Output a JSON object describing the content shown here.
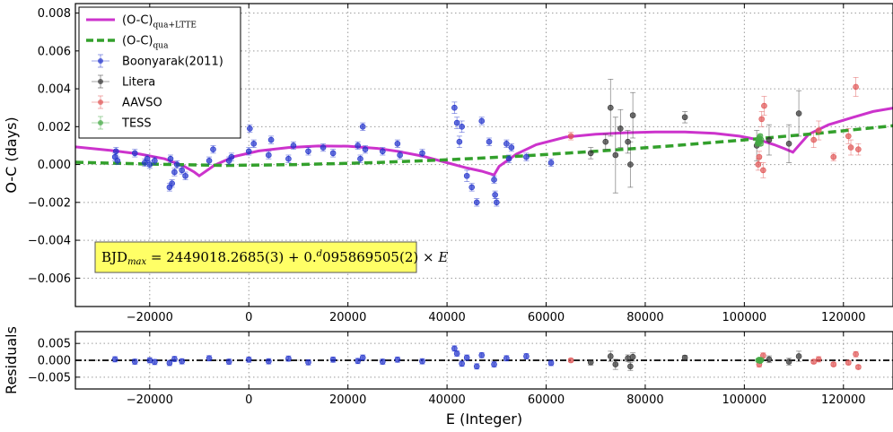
{
  "chart_data": [
    {
      "type": "scatter",
      "panel": "main",
      "xlabel": "",
      "ylabel": "O-C (days)",
      "xlim": [
        -35000,
        130000
      ],
      "ylim": [
        -0.0075,
        0.0085
      ],
      "xticks": [
        -20000,
        0,
        20000,
        40000,
        60000,
        80000,
        100000,
        120000
      ],
      "xtick_labels": [
        "−20000",
        "0",
        "20000",
        "40000",
        "60000",
        "80000",
        "100000",
        "120000"
      ],
      "yticks": [
        -0.006,
        -0.004,
        -0.002,
        0.0,
        0.002,
        0.004,
        0.006,
        0.008
      ],
      "ytick_labels": [
        "−0.006",
        "−0.004",
        "−0.002",
        "0.000",
        "0.002",
        "0.004",
        "0.006",
        "0.008"
      ],
      "grid": true,
      "legend_position": "top-left",
      "annotation": {
        "text": "BJD_max = 2449018.2685(3) + 0.d095869505(2) × E",
        "position": "lower-left",
        "background": "#ffff66"
      },
      "legend": [
        {
          "label_main": "(O-C)",
          "label_sub": "qua+LTTE",
          "style": "line",
          "color": "#cc33cc"
        },
        {
          "label_main": "(O-C)",
          "label_sub": "qua",
          "style": "dashed",
          "color": "#33a02c"
        },
        {
          "label_main": "Boonyarak(2011)",
          "label_sub": "",
          "style": "errorbar",
          "color": "#2233cc"
        },
        {
          "label_main": "Litera",
          "label_sub": "",
          "style": "errorbar",
          "color": "#333333"
        },
        {
          "label_main": "AAVSO",
          "label_sub": "",
          "style": "errorbar",
          "color": "#e05555"
        },
        {
          "label_main": "TESS",
          "label_sub": "",
          "style": "errorbar",
          "color": "#44aa44"
        }
      ],
      "lines": [
        {
          "name": "(O-C)qua+LTTE",
          "color": "#cc33cc",
          "style": "solid",
          "x": [
            -35000,
            -28000,
            -22000,
            -17000,
            -13000,
            -11000,
            -10000,
            -7000,
            -3000,
            2000,
            8000,
            14000,
            20000,
            26000,
            30000,
            35000,
            40000,
            44000,
            47000,
            49500,
            50500,
            54000,
            58000,
            64000,
            70000,
            76000,
            82000,
            88000,
            94000,
            99000,
            103000,
            106000,
            108000,
            109800,
            110300,
            113000,
            117000,
            122000,
            126000,
            130000
          ],
          "y": [
            0.00093,
            0.00075,
            0.00055,
            0.0003,
            -0.0001,
            -0.0004,
            -0.0006,
            -5e-05,
            0.00042,
            0.00072,
            0.0009,
            0.00098,
            0.00097,
            0.00085,
            0.0007,
            0.00045,
            0.0001,
            -0.00018,
            -0.00035,
            -0.00055,
            -0.0001,
            0.00055,
            0.00105,
            0.00145,
            0.0016,
            0.00168,
            0.00172,
            0.00172,
            0.00165,
            0.0015,
            0.0013,
            0.00105,
            0.00085,
            0.00065,
            0.0008,
            0.0016,
            0.0021,
            0.0025,
            0.0028,
            0.00298
          ]
        },
        {
          "name": "(O-C)qua",
          "color": "#33a02c",
          "style": "dashed",
          "x": [
            -35000,
            -20000,
            -5000,
            10000,
            25000,
            40000,
            55000,
            70000,
            85000,
            100000,
            115000,
            130000
          ],
          "y": [
            0.00012,
            2e-05,
            -5e-05,
            0.0,
            0.0001,
            0.00025,
            0.00045,
            0.0007,
            0.00098,
            0.0013,
            0.00165,
            0.00205
          ]
        }
      ],
      "series": [
        {
          "name": "Boonyarak(2011)",
          "color": "#2233cc",
          "points": [
            [
              -27000,
              0.0004,
              0.0002
            ],
            [
              -26800,
              0.0007,
              0.0002
            ],
            [
              -26500,
              0.0002,
              0.0002
            ],
            [
              -23000,
              0.0006,
              0.0002
            ],
            [
              -21000,
              0.0001,
              0.0002
            ],
            [
              -20500,
              0.0003,
              0.0002
            ],
            [
              -20000,
              0.0,
              0.0002
            ],
            [
              -19000,
              0.0002,
              0.0002
            ],
            [
              -16000,
              -0.0012,
              0.0002
            ],
            [
              -15500,
              -0.001,
              0.0002
            ],
            [
              -15000,
              -0.0004,
              0.0002
            ],
            [
              -14500,
              0.0,
              0.0002
            ],
            [
              -15800,
              0.0003,
              0.0002
            ],
            [
              -13500,
              -0.0003,
              0.0002
            ],
            [
              -12800,
              -0.0006,
              0.0002
            ],
            [
              -8000,
              0.0002,
              0.0002
            ],
            [
              -7200,
              0.0008,
              0.0002
            ],
            [
              -4000,
              0.0002,
              0.0002
            ],
            [
              -3500,
              0.0004,
              0.0002
            ],
            [
              0,
              0.0007,
              0.0002
            ],
            [
              200,
              0.0019,
              0.0002
            ],
            [
              1000,
              0.0011,
              0.0002
            ],
            [
              4000,
              0.0005,
              0.0002
            ],
            [
              4500,
              0.0013,
              0.0002
            ],
            [
              8000,
              0.0003,
              0.0002
            ],
            [
              9000,
              0.001,
              0.0002
            ],
            [
              12000,
              0.0007,
              0.0002
            ],
            [
              15000,
              0.0009,
              0.0002
            ],
            [
              17000,
              0.0006,
              0.0002
            ],
            [
              22000,
              0.001,
              0.0002
            ],
            [
              22500,
              0.0003,
              0.0002
            ],
            [
              23000,
              0.002,
              0.0002
            ],
            [
              23500,
              0.0008,
              0.0002
            ],
            [
              27000,
              0.0007,
              0.0002
            ],
            [
              30000,
              0.0011,
              0.0002
            ],
            [
              30500,
              0.0005,
              0.0002
            ],
            [
              35000,
              0.0006,
              0.0002
            ],
            [
              41500,
              0.003,
              0.0003
            ],
            [
              42000,
              0.0022,
              0.0003
            ],
            [
              42500,
              0.0012,
              0.0003
            ],
            [
              43000,
              0.002,
              0.0003
            ],
            [
              44000,
              -0.0006,
              0.0003
            ],
            [
              45000,
              -0.0012,
              0.0002
            ],
            [
              46000,
              -0.002,
              0.0002
            ],
            [
              47000,
              0.0023,
              0.0002
            ],
            [
              48500,
              0.0012,
              0.0002
            ],
            [
              49500,
              -0.0008,
              0.0002
            ],
            [
              49700,
              -0.0016,
              0.0002
            ],
            [
              50000,
              -0.002,
              0.0002
            ],
            [
              52000,
              0.0011,
              0.0002
            ],
            [
              52500,
              0.0003,
              0.0002
            ],
            [
              53000,
              0.0009,
              0.0002
            ],
            [
              56000,
              0.0004,
              0.0002
            ],
            [
              61000,
              0.0001,
              0.0002
            ]
          ]
        },
        {
          "name": "Litera",
          "color": "#333333",
          "points": [
            [
              69000,
              0.0006,
              0.0003
            ],
            [
              72000,
              0.0012,
              0.0004
            ],
            [
              73000,
              0.003,
              0.0015
            ],
            [
              74000,
              0.0005,
              0.002
            ],
            [
              75000,
              0.0019,
              0.001
            ],
            [
              76500,
              0.0012,
              0.0006
            ],
            [
              77000,
              0.0,
              0.0012
            ],
            [
              77500,
              0.0026,
              0.0012
            ],
            [
              88000,
              0.0025,
              0.0003
            ],
            [
              102500,
              0.001,
              0.0008
            ],
            [
              105000,
              0.0013,
              0.0008
            ],
            [
              111000,
              0.0027,
              0.0012
            ],
            [
              109000,
              0.0011,
              0.001
            ]
          ]
        },
        {
          "name": "AAVSO",
          "color": "#e05555",
          "points": [
            [
              65000,
              0.0015,
              0.0002
            ],
            [
              102800,
              0.0,
              0.0003
            ],
            [
              103000,
              0.0004,
              0.0003
            ],
            [
              103500,
              0.0024,
              0.0004
            ],
            [
              104000,
              0.0031,
              0.0005
            ],
            [
              103800,
              -0.0003,
              0.0004
            ],
            [
              114000,
              0.0013,
              0.0004
            ],
            [
              115000,
              0.0018,
              0.0005
            ],
            [
              118000,
              0.0004,
              0.0002
            ],
            [
              121000,
              0.0015,
              0.0004
            ],
            [
              121500,
              0.0009,
              0.0004
            ],
            [
              122500,
              0.0041,
              0.0005
            ],
            [
              123000,
              0.0008,
              0.0003
            ]
          ]
        },
        {
          "name": "TESS",
          "color": "#44aa44",
          "points": [
            [
              102700,
              0.0011,
              0.0001
            ],
            [
              102800,
              0.0012,
              0.0001
            ],
            [
              102900,
              0.0013,
              0.0001
            ],
            [
              103000,
              0.0014,
              0.0001
            ],
            [
              103100,
              0.0012,
              0.0001
            ],
            [
              103200,
              0.0015,
              0.0001
            ],
            [
              103300,
              0.0011,
              0.0001
            ],
            [
              103400,
              0.0013,
              0.0001
            ]
          ]
        }
      ]
    },
    {
      "type": "scatter",
      "panel": "residuals",
      "xlabel": "E (Integer)",
      "ylabel": "Residuals",
      "xlim": [
        -35000,
        130000
      ],
      "ylim": [
        -0.0085,
        0.0085
      ],
      "xticks": [
        -20000,
        0,
        20000,
        40000,
        60000,
        80000,
        100000,
        120000
      ],
      "xtick_labels": [
        "−20000",
        "0",
        "20000",
        "40000",
        "60000",
        "80000",
        "100000",
        "120000"
      ],
      "yticks": [
        -0.005,
        0.0,
        0.005
      ],
      "ytick_labels": [
        "−0.005",
        "0.000",
        "0.005"
      ],
      "grid": true,
      "zero_line": {
        "y": 0.0,
        "style": "dash-dot",
        "color": "#000000"
      },
      "series": [
        {
          "name": "Boonyarak(2011)",
          "color": "#2233cc",
          "points": [
            [
              -27000,
              0.0003,
              0.0008
            ],
            [
              -23000,
              -0.0004,
              0.0008
            ],
            [
              -20000,
              0.0,
              0.0008
            ],
            [
              -19000,
              -0.0005,
              0.0008
            ],
            [
              -16000,
              -0.0008,
              0.0008
            ],
            [
              -15000,
              0.0004,
              0.0008
            ],
            [
              -13500,
              -0.0003,
              0.0008
            ],
            [
              -8000,
              0.0006,
              0.0008
            ],
            [
              -4000,
              -0.0004,
              0.0008
            ],
            [
              0,
              0.0002,
              0.0008
            ],
            [
              4000,
              -0.0003,
              0.0008
            ],
            [
              8000,
              0.0005,
              0.0008
            ],
            [
              12000,
              -0.0006,
              0.0008
            ],
            [
              17000,
              0.0002,
              0.0008
            ],
            [
              22000,
              -0.0002,
              0.0008
            ],
            [
              23000,
              0.0008,
              0.0008
            ],
            [
              27000,
              -0.0004,
              0.0008
            ],
            [
              30000,
              0.0002,
              0.0008
            ],
            [
              35000,
              -0.0003,
              0.0008
            ],
            [
              41500,
              0.0035,
              0.0008
            ],
            [
              42000,
              0.002,
              0.0008
            ],
            [
              43000,
              -0.001,
              0.0008
            ],
            [
              44000,
              0.0008,
              0.0008
            ],
            [
              46000,
              -0.0018,
              0.0008
            ],
            [
              47000,
              0.0015,
              0.0008
            ],
            [
              49500,
              -0.0012,
              0.0008
            ],
            [
              52000,
              0.0006,
              0.0008
            ],
            [
              56000,
              0.0012,
              0.0008
            ],
            [
              61000,
              -0.0008,
              0.0008
            ]
          ]
        },
        {
          "name": "Litera",
          "color": "#333333",
          "points": [
            [
              69000,
              -0.0006,
              0.0008
            ],
            [
              73000,
              0.0012,
              0.0015
            ],
            [
              74000,
              -0.0012,
              0.0015
            ],
            [
              76500,
              0.0006,
              0.001
            ],
            [
              77000,
              -0.0018,
              0.0012
            ],
            [
              77500,
              0.001,
              0.0012
            ],
            [
              88000,
              0.0008,
              0.0006
            ],
            [
              105000,
              0.0003,
              0.001
            ],
            [
              109000,
              -0.0004,
              0.001
            ],
            [
              111000,
              0.0012,
              0.0015
            ]
          ]
        },
        {
          "name": "AAVSO",
          "color": "#e05555",
          "points": [
            [
              65000,
              0.0,
              0.0005
            ],
            [
              103000,
              -0.0012,
              0.0008
            ],
            [
              103800,
              0.0014,
              0.0008
            ],
            [
              114000,
              -0.0004,
              0.0006
            ],
            [
              115000,
              0.0003,
              0.0008
            ],
            [
              118000,
              -0.0012,
              0.0005
            ],
            [
              121000,
              -0.0007,
              0.0006
            ],
            [
              122500,
              0.0018,
              0.0008
            ],
            [
              123000,
              -0.002,
              0.0006
            ]
          ]
        },
        {
          "name": "TESS",
          "color": "#44aa44",
          "points": [
            [
              102800,
              0.0,
              0.0002
            ],
            [
              103000,
              0.0002,
              0.0002
            ],
            [
              103200,
              -0.0002,
              0.0002
            ],
            [
              103400,
              0.0001,
              0.0002
            ]
          ]
        }
      ]
    }
  ]
}
